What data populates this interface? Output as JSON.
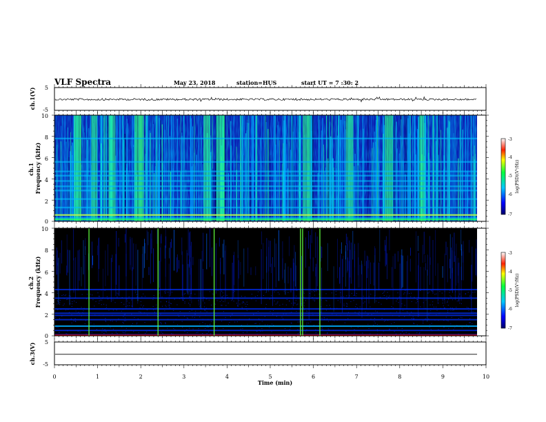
{
  "header": {
    "title": "VLF Spectra",
    "date": "May 23, 2018",
    "station": "station=HUS",
    "start_ut": "start UT = 7 :30: 2"
  },
  "chart_data": [
    {
      "type": "line",
      "panel": "ch1-waveform",
      "ylabel": "ch.1(V)",
      "ylim": [
        -5,
        5
      ],
      "yticks": [
        "5",
        "-5"
      ],
      "series": [
        {
          "values": [
            {
              "t": 0.05,
              "v": -0.2
            },
            {
              "t": 9.8,
              "v": -0.2
            }
          ]
        }
      ]
    },
    {
      "type": "heatmap",
      "panel": "ch1-spectrogram",
      "ylabel": "ch.1\nFrequency (kHz)",
      "ylim": [
        0,
        10
      ],
      "yticks": [
        "0",
        "2",
        "4",
        "6",
        "8",
        "10"
      ],
      "colorbar": {
        "label": "log(PSD)(V²/Hz)",
        "ticks": [
          "-3",
          "-4",
          "-5",
          "-6",
          "-7"
        ],
        "range": [
          -7,
          -3
        ]
      },
      "bands_khz": [
        0.3,
        0.6,
        1.3,
        2.1,
        2.9,
        3.3,
        3.8,
        4.3,
        4.7,
        5.6,
        7.8
      ],
      "bursts_min": [
        0.5,
        0.9,
        1.3,
        1.9,
        2.0,
        3.5,
        3.8,
        5.8,
        6.8,
        7.7,
        8.5
      ]
    },
    {
      "type": "heatmap",
      "panel": "ch2-spectrogram",
      "ylabel": "ch.2\nFrequency (kHz)",
      "ylim": [
        0,
        10
      ],
      "yticks": [
        "0",
        "2",
        "4",
        "6",
        "8",
        "10"
      ],
      "colorbar": {
        "label": "log(PSD)(V²/Hz)",
        "ticks": [
          "-3",
          "-4",
          "-5",
          "-6",
          "-7"
        ],
        "range": [
          -7,
          -3
        ]
      },
      "bands_khz": [
        0.1,
        0.5,
        0.9,
        1.5,
        1.9,
        2.1,
        2.5,
        3.5,
        4.3
      ],
      "spikes_min": [
        0.8,
        2.4,
        3.7,
        5.7,
        5.75,
        6.15
      ]
    },
    {
      "type": "line",
      "panel": "ch3-waveform",
      "ylabel": "ch.3(V)",
      "ylim": [
        -5,
        5
      ],
      "yticks": [
        "5",
        "-5"
      ],
      "series": [
        {
          "values": [
            {
              "t": 0.05,
              "v": -0.4
            },
            {
              "t": 9.8,
              "v": -0.4
            }
          ]
        }
      ]
    }
  ],
  "xaxis": {
    "label": "Time (min)",
    "range": [
      0,
      10
    ],
    "ticks": [
      "0",
      "1",
      "2",
      "3",
      "4",
      "5",
      "6",
      "7",
      "8",
      "9",
      "10"
    ]
  }
}
